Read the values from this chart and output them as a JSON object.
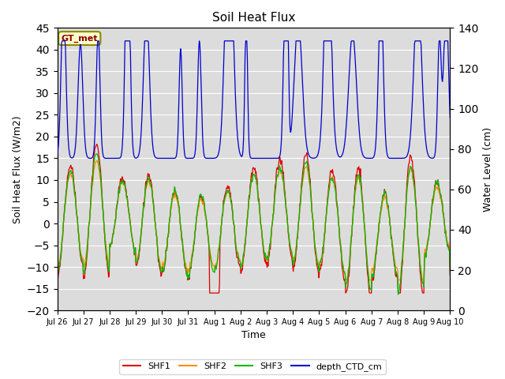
{
  "title": "Soil Heat Flux",
  "ylabel_left": "Soil Heat Flux (W/m2)",
  "ylabel_right": "Water Level (cm)",
  "xlabel": "Time",
  "ylim_left": [
    -20,
    45
  ],
  "ylim_right": [
    0,
    140
  ],
  "annotation_text": "GT_met",
  "annotation_color": "#8B0000",
  "background_color": "#DCDCDC",
  "series_colors": {
    "SHF1": "#DD0000",
    "SHF2": "#FF8C00",
    "SHF3": "#00BB00",
    "depth_CTD_cm": "#0000CC"
  },
  "legend_labels": [
    "SHF1",
    "SHF2",
    "SHF3",
    "depth_CTD_cm"
  ],
  "x_tick_labels": [
    "Jul 26",
    "Jul 27",
    "Jul 28",
    "Jul 29",
    "Jul 30",
    "Jul 31",
    "Aug 1",
    "Aug 2",
    "Aug 3",
    "Aug 4",
    "Aug 5",
    "Aug 6",
    "Aug 7",
    "Aug 8",
    "Aug 9",
    "Aug 10"
  ],
  "yticks_left": [
    -20,
    -15,
    -10,
    -5,
    0,
    5,
    10,
    15,
    20,
    25,
    30,
    35,
    40,
    45
  ],
  "yticks_right": [
    0,
    20,
    40,
    60,
    80,
    100,
    120,
    140
  ]
}
